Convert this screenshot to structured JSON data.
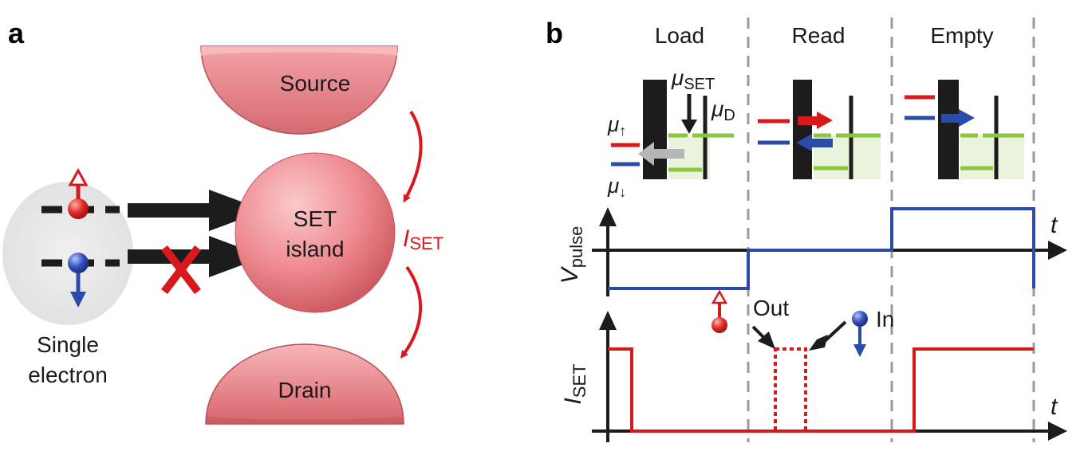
{
  "panel_a": {
    "letter": "a",
    "source": "Source",
    "island_line1": "SET",
    "island_line2": "island",
    "drain": "Drain",
    "current_sym": "I",
    "current_sub": "SET",
    "electron_line1": "Single",
    "electron_line2": "electron"
  },
  "panel_b": {
    "letter": "b",
    "phases": [
      "Load",
      "Read",
      "Empty"
    ],
    "mu_set_sym": "μ",
    "mu_set_sub": "SET",
    "mu_d_sym": "μ",
    "mu_d_sub": "D",
    "mu_up_sym": "μ",
    "mu_up_sub": "↑",
    "mu_down_sym": "μ",
    "mu_down_sub": "↓",
    "vpulse_sym": "V",
    "vpulse_sub": "pulse",
    "iset_sym": "I",
    "iset_sub": "SET",
    "time_label_top": "t",
    "time_label_bottom": "t",
    "out_label": "Out",
    "in_label": "In"
  },
  "colors": {
    "red": "#d7191c",
    "blue": "#2b4ba8",
    "green": "#8cc63f",
    "pink": "#ef8088",
    "barrier": "#1c1c1c"
  }
}
